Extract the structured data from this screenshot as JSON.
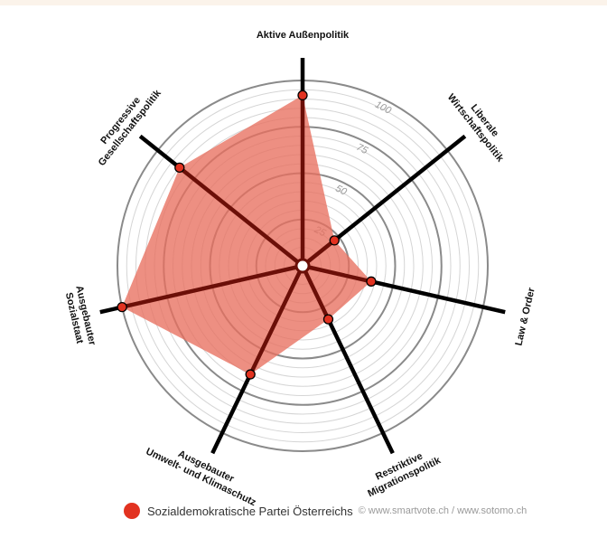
{
  "chart_data": {
    "type": "radar",
    "axes": [
      "Aktive Außenpolitik",
      "Liberale Wirtschaftspolitik",
      "Law & Order",
      "Restriktive Migrationspolitik",
      "Ausgebauter Umwelt- und Klimaschutz",
      "Ausgebauter Sozialstaat",
      "Progressive Gesellschaftspolitik"
    ],
    "axis_label_lines": [
      [
        "Aktive Außenpolitik"
      ],
      [
        "Liberale",
        "Wirtschaftspolitik"
      ],
      [
        "Law & Order"
      ],
      [
        "Restriktive",
        "Migrationspolitik"
      ],
      [
        "Ausgebauter",
        "Umwelt- und Klimaschutz"
      ],
      [
        "Ausgebauter",
        "Sozialstaat"
      ],
      [
        "Progressive",
        "Gesellschaftspolitik"
      ]
    ],
    "series": [
      {
        "name": "Sozialdemokratische Partei Österreichs",
        "values": [
          92,
          22,
          38,
          32,
          65,
          100,
          85
        ]
      }
    ],
    "rlim": [
      0,
      100
    ],
    "ticks": [
      25,
      50,
      75,
      100
    ],
    "minor_step": 5,
    "legend_position": "bottom-left"
  },
  "legend": {
    "label": "Sozialdemokratische Partei Österreichs"
  },
  "credit": "© www.smartvote.ch / www.sotomo.ch",
  "colors": {
    "fill": "#e8705f",
    "point": "#e23220",
    "spoke_inner": "#6b0f08",
    "spoke_outer": "#000000",
    "ring_major": "#8a8a8a",
    "ring_minor": "#d5d5d5"
  }
}
